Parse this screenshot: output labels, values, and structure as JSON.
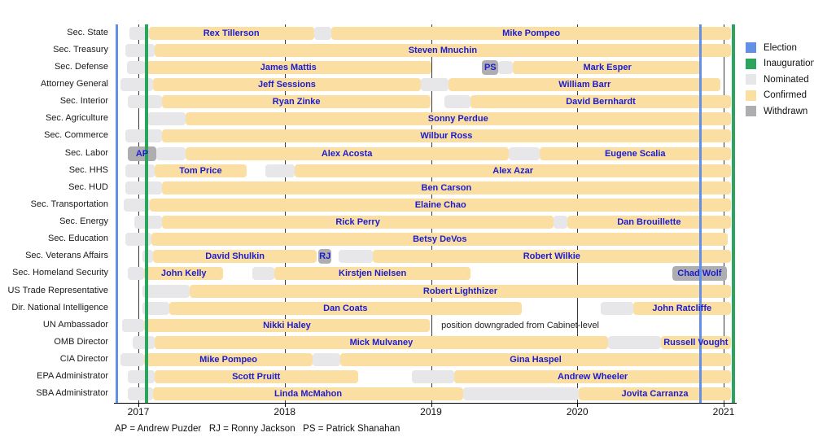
{
  "legend": {
    "items": [
      {
        "label": "Election",
        "color": "#6290e8"
      },
      {
        "label": "Inauguration",
        "color": "#2ba45d"
      },
      {
        "label": "Nominated",
        "color": "#e7e7ea"
      },
      {
        "label": "Confirmed",
        "color": "#fbdfa2"
      },
      {
        "label": "Withdrawn",
        "color": "#aeaeb0"
      }
    ]
  },
  "footnote": "AP = Andrew Puzder   RJ = Ronny Jackson   PS = Patrick Shanahan",
  "chart_data": {
    "type": "gantt-timeline",
    "title": "",
    "x_axis": {
      "ticks": [
        2017,
        2018,
        2019,
        2020,
        2021
      ],
      "min": 2016.833,
      "max": 2021.089
    },
    "status_colors": {
      "nominated": "#e7e7ea",
      "confirmed": "#fbdfa2",
      "withdrawn": "#aeaeb0"
    },
    "events": [
      {
        "type": "election",
        "t": 2016.855,
        "color": "#6290e8",
        "width": 3
      },
      {
        "type": "inauguration",
        "t": 2017.053,
        "color": "#2ba45d",
        "width": 4
      },
      {
        "type": "election",
        "t": 2020.839,
        "color": "#6290e8",
        "width": 3
      },
      {
        "type": "inauguration",
        "t": 2021.065,
        "color": "#2ba45d",
        "width": 4
      }
    ],
    "rows": [
      {
        "position": "Sec. State",
        "segments": [
          {
            "type": "nominated",
            "start": 2016.94,
            "end": 2017.07
          },
          {
            "type": "confirmed",
            "start": 2017.07,
            "end": 2018.2,
            "label": "Rex Tillerson"
          },
          {
            "type": "nominated",
            "start": 2018.2,
            "end": 2018.32
          },
          {
            "type": "confirmed",
            "start": 2018.32,
            "end": 2021.05,
            "label": "Mike Pompeo"
          }
        ]
      },
      {
        "position": "Sec. Treasury",
        "segments": [
          {
            "type": "nominated",
            "start": 2016.91,
            "end": 2017.11
          },
          {
            "type": "confirmed",
            "start": 2017.11,
            "end": 2021.05,
            "label": "Steven Mnuchin"
          }
        ]
      },
      {
        "position": "Sec. Defense",
        "segments": [
          {
            "type": "nominated",
            "start": 2016.92,
            "end": 2017.05
          },
          {
            "type": "confirmed",
            "start": 2017.05,
            "end": 2019.0,
            "label": "James Mattis"
          },
          {
            "type": "withdrawn",
            "start": 2019.35,
            "end": 2019.46,
            "label": "PS"
          },
          {
            "type": "nominated",
            "start": 2019.46,
            "end": 2019.56
          },
          {
            "type": "confirmed",
            "start": 2019.56,
            "end": 2020.85,
            "label": "Mark Esper"
          }
        ]
      },
      {
        "position": "Attorney General",
        "segments": [
          {
            "type": "nominated",
            "start": 2016.88,
            "end": 2017.1
          },
          {
            "type": "confirmed",
            "start": 2017.1,
            "end": 2018.93,
            "label": "Jeff Sessions"
          },
          {
            "type": "nominated",
            "start": 2018.93,
            "end": 2019.12
          },
          {
            "type": "confirmed",
            "start": 2019.12,
            "end": 2020.98,
            "label": "William Barr"
          }
        ]
      },
      {
        "position": "Sec. Interior",
        "segments": [
          {
            "type": "nominated",
            "start": 2016.93,
            "end": 2017.16
          },
          {
            "type": "confirmed",
            "start": 2017.16,
            "end": 2019.0,
            "label": "Ryan Zinke"
          },
          {
            "type": "nominated",
            "start": 2019.09,
            "end": 2019.27
          },
          {
            "type": "confirmed",
            "start": 2019.27,
            "end": 2021.05,
            "label": "David Bernhardt"
          }
        ]
      },
      {
        "position": "Sec. Agriculture",
        "segments": [
          {
            "type": "nominated",
            "start": 2017.06,
            "end": 2017.32
          },
          {
            "type": "confirmed",
            "start": 2017.32,
            "end": 2021.05,
            "label": "Sonny Perdue"
          }
        ]
      },
      {
        "position": "Sec. Commerce",
        "segments": [
          {
            "type": "nominated",
            "start": 2016.91,
            "end": 2017.16
          },
          {
            "type": "confirmed",
            "start": 2017.16,
            "end": 2021.05,
            "label": "Wilbur Ross"
          }
        ]
      },
      {
        "position": "Sec. Labor",
        "segments": [
          {
            "type": "withdrawn",
            "start": 2016.93,
            "end": 2017.12,
            "label": "AP"
          },
          {
            "type": "nominated",
            "start": 2017.12,
            "end": 2017.32
          },
          {
            "type": "confirmed",
            "start": 2017.32,
            "end": 2019.53,
            "label": "Alex Acosta"
          },
          {
            "type": "nominated",
            "start": 2019.53,
            "end": 2019.74
          },
          {
            "type": "confirmed",
            "start": 2019.74,
            "end": 2021.05,
            "label": "Eugene Scalia"
          }
        ]
      },
      {
        "position": "Sec. HHS",
        "segments": [
          {
            "type": "nominated",
            "start": 2016.91,
            "end": 2017.11
          },
          {
            "type": "confirmed",
            "start": 2017.11,
            "end": 2017.74,
            "label": "Tom Price"
          },
          {
            "type": "nominated",
            "start": 2017.87,
            "end": 2018.07
          },
          {
            "type": "confirmed",
            "start": 2018.07,
            "end": 2021.05,
            "label": "Alex Azar"
          }
        ]
      },
      {
        "position": "Sec. HUD",
        "segments": [
          {
            "type": "nominated",
            "start": 2016.91,
            "end": 2017.16
          },
          {
            "type": "confirmed",
            "start": 2017.16,
            "end": 2021.05,
            "label": "Ben Carson"
          }
        ]
      },
      {
        "position": "Sec. Transportation",
        "segments": [
          {
            "type": "nominated",
            "start": 2016.9,
            "end": 2017.08
          },
          {
            "type": "confirmed",
            "start": 2017.08,
            "end": 2021.05,
            "label": "Elaine Chao"
          }
        ]
      },
      {
        "position": "Sec. Energy",
        "segments": [
          {
            "type": "nominated",
            "start": 2016.97,
            "end": 2017.16
          },
          {
            "type": "confirmed",
            "start": 2017.16,
            "end": 2019.84,
            "label": "Rick Perry"
          },
          {
            "type": "nominated",
            "start": 2019.84,
            "end": 2019.93
          },
          {
            "type": "confirmed",
            "start": 2019.93,
            "end": 2021.05,
            "label": "Dan Brouillette"
          }
        ]
      },
      {
        "position": "Sec. Education",
        "segments": [
          {
            "type": "nominated",
            "start": 2016.91,
            "end": 2017.09
          },
          {
            "type": "confirmed",
            "start": 2017.09,
            "end": 2021.03,
            "label": "Betsy DeVos"
          }
        ]
      },
      {
        "position": "Sec. Veterans Affairs",
        "segments": [
          {
            "type": "nominated",
            "start": 2017.03,
            "end": 2017.1
          },
          {
            "type": "confirmed",
            "start": 2017.1,
            "end": 2018.22,
            "label": "David Shulkin"
          },
          {
            "type": "withdrawn",
            "start": 2018.23,
            "end": 2018.32,
            "label": "RJ"
          },
          {
            "type": "nominated",
            "start": 2018.37,
            "end": 2018.6
          },
          {
            "type": "confirmed",
            "start": 2018.6,
            "end": 2021.05,
            "label": "Robert Wilkie"
          }
        ]
      },
      {
        "position": "Sec. Homeland Security",
        "segments": [
          {
            "type": "nominated",
            "start": 2016.93,
            "end": 2017.04
          },
          {
            "type": "confirmed",
            "start": 2017.04,
            "end": 2017.58,
            "label": "John Kelly"
          },
          {
            "type": "nominated",
            "start": 2017.78,
            "end": 2017.93
          },
          {
            "type": "confirmed",
            "start": 2017.93,
            "end": 2019.27,
            "label": "Kirstjen Nielsen"
          },
          {
            "type": "withdrawn",
            "start": 2020.65,
            "end": 2021.02,
            "label": "Chad Wolf"
          }
        ]
      },
      {
        "position": "US Trade Representative",
        "segments": [
          {
            "type": "nominated",
            "start": 2017.03,
            "end": 2017.35
          },
          {
            "type": "confirmed",
            "start": 2017.35,
            "end": 2021.05,
            "label": "Robert Lighthizer"
          }
        ]
      },
      {
        "position": "Dir. National Intelligence",
        "segments": [
          {
            "type": "nominated",
            "start": 2017.03,
            "end": 2017.21
          },
          {
            "type": "confirmed",
            "start": 2017.21,
            "end": 2019.62,
            "label": "Dan Coats"
          },
          {
            "type": "nominated",
            "start": 2020.16,
            "end": 2020.38
          },
          {
            "type": "confirmed",
            "start": 2020.38,
            "end": 2021.05,
            "label": "John Ratcliffe"
          }
        ]
      },
      {
        "position": "UN Ambassador",
        "segments": [
          {
            "type": "nominated",
            "start": 2016.89,
            "end": 2017.04
          },
          {
            "type": "confirmed",
            "start": 2017.04,
            "end": 2018.99,
            "label": "Nikki Haley"
          }
        ],
        "annotation": {
          "text": "position downgraded from Cabinet-level",
          "t": 2019.07
        }
      },
      {
        "position": "OMB Director",
        "segments": [
          {
            "type": "nominated",
            "start": 2016.96,
            "end": 2017.11
          },
          {
            "type": "confirmed",
            "start": 2017.11,
            "end": 2020.21,
            "label": "Mick Mulvaney"
          },
          {
            "type": "nominated",
            "start": 2020.21,
            "end": 2020.57
          },
          {
            "type": "confirmed",
            "start": 2020.57,
            "end": 2021.05,
            "label": "Russell Vought"
          }
        ]
      },
      {
        "position": "CIA Director",
        "segments": [
          {
            "type": "nominated",
            "start": 2016.88,
            "end": 2017.04
          },
          {
            "type": "confirmed",
            "start": 2017.04,
            "end": 2018.19,
            "label": "Mike Pompeo"
          },
          {
            "type": "nominated",
            "start": 2018.19,
            "end": 2018.38
          },
          {
            "type": "confirmed",
            "start": 2018.38,
            "end": 2021.05,
            "label": "Gina Haspel"
          }
        ]
      },
      {
        "position": "EPA Administrator",
        "segments": [
          {
            "type": "nominated",
            "start": 2016.93,
            "end": 2017.11
          },
          {
            "type": "confirmed",
            "start": 2017.11,
            "end": 2018.5,
            "label": "Scott Pruitt"
          },
          {
            "type": "nominated",
            "start": 2018.87,
            "end": 2019.16
          },
          {
            "type": "confirmed",
            "start": 2019.16,
            "end": 2021.05,
            "label": "Andrew Wheeler"
          }
        ]
      },
      {
        "position": "SBA Administrator",
        "segments": [
          {
            "type": "nominated",
            "start": 2016.93,
            "end": 2017.1
          },
          {
            "type": "confirmed",
            "start": 2017.1,
            "end": 2019.22,
            "label": "Linda McMahon"
          },
          {
            "type": "nominated",
            "start": 2019.22,
            "end": 2020.01
          },
          {
            "type": "confirmed",
            "start": 2020.01,
            "end": 2021.05,
            "label": "Jovita Carranza"
          }
        ]
      }
    ]
  }
}
